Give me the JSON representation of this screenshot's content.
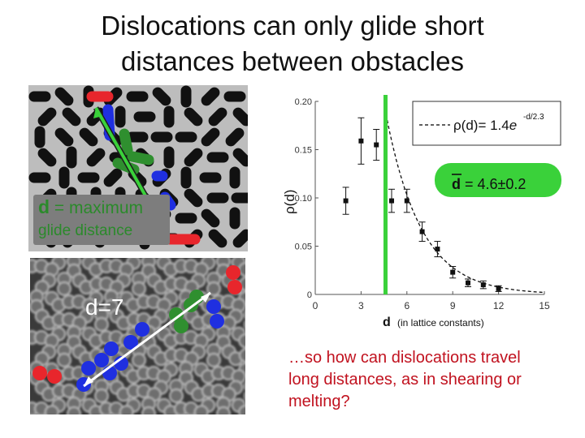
{
  "slide": {
    "title_line1": "Dislocations can only glide short",
    "title_line2": "distances between obstacles",
    "question": "…so how can dislocations travel long distances, as in shearing or melting?"
  },
  "sim_image": {
    "label_symbol": "d",
    "label_text_1": " = maximum",
    "label_text_2": "glide distance"
  },
  "micro_image": {
    "label": "d=7"
  },
  "chart_data": {
    "type": "scatter",
    "xlabel_symbol": "d",
    "xlabel_note": "(in lattice constants)",
    "ylabel": "ρ(d)",
    "xlim": [
      0,
      15
    ],
    "ylim": [
      0,
      0.2
    ],
    "x_ticks": [
      0,
      3,
      6,
      9,
      12,
      15
    ],
    "y_ticks": [
      0,
      0.05,
      0.1,
      0.15,
      0.2
    ],
    "y_tick_labels": [
      "0",
      "0.05",
      "0.10",
      "0.15",
      "0.20"
    ],
    "series": [
      {
        "x": [
          2,
          3,
          4,
          5,
          6,
          7,
          8,
          9,
          10,
          11,
          12
        ],
        "y": [
          0.097,
          0.159,
          0.155,
          0.097,
          0.097,
          0.065,
          0.047,
          0.023,
          0.012,
          0.01,
          0.006
        ],
        "err": [
          0.014,
          0.024,
          0.016,
          0.012,
          0.012,
          0.01,
          0.008,
          0.006,
          0.004,
          0.004,
          0.003
        ]
      }
    ],
    "fit_legend": {
      "prefix": "ρ(d)= 1.4",
      "base": "e",
      "exponent": "-d/2.3"
    },
    "fit": {
      "amplitude": 1.4,
      "scale": 2.3
    },
    "vertical_line": {
      "x": 4.6,
      "color": "#3ad13a"
    },
    "mean_label": {
      "symbol": "d",
      "text": " = 4.6±0.2"
    }
  },
  "colors": {
    "red": "#e8262c",
    "blue": "#1f2fe0",
    "green": "#2f8f2f",
    "arrow": "#3ad13a",
    "question": "#c1121f"
  }
}
